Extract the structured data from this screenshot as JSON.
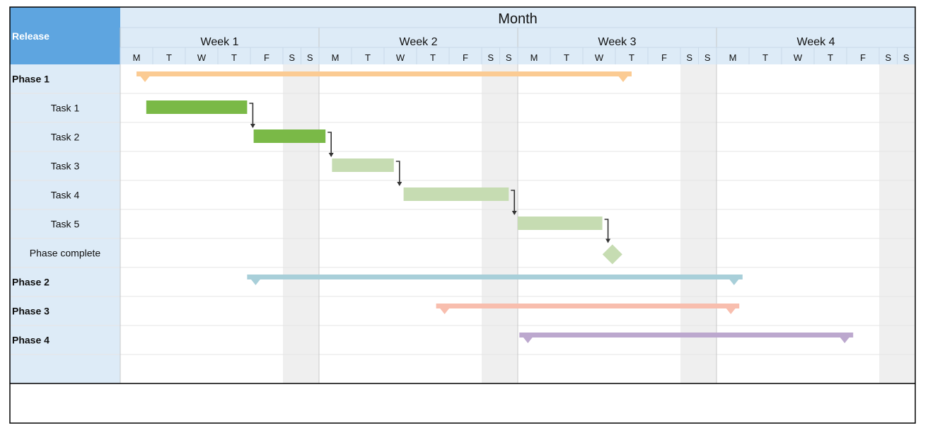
{
  "chart_data": {
    "type": "gantt",
    "title": "Month",
    "corner_label": "Release",
    "weeks": [
      "Week 1",
      "Week 2",
      "Week 3",
      "Week 4"
    ],
    "day_labels": [
      "M",
      "T",
      "W",
      "T",
      "F",
      "S",
      "S"
    ],
    "weekend_shaded": true,
    "rows": [
      {
        "label": "Phase 1",
        "kind": "phase",
        "start": 0.5,
        "end": 17.5,
        "color": "#FBCB93"
      },
      {
        "label": "Task 1",
        "kind": "task",
        "start": 0.8,
        "end": 3.9,
        "color": "#7AB947"
      },
      {
        "label": "Task 2",
        "kind": "task",
        "start": 4.1,
        "end": 7.2,
        "color": "#7AB947"
      },
      {
        "label": "Task 3",
        "kind": "task",
        "start": 7.4,
        "end": 9.3,
        "color": "#C6DCB2"
      },
      {
        "label": "Task 4",
        "kind": "task",
        "start": 9.6,
        "end": 13.5,
        "color": "#C6DCB2"
      },
      {
        "label": "Task 5",
        "kind": "task",
        "start": 14.0,
        "end": 16.6,
        "color": "#C6DCB2"
      },
      {
        "label": "Phase complete",
        "kind": "milestone",
        "at": 16.8,
        "color": "#C6DCB2"
      },
      {
        "label": "Phase 2",
        "kind": "phase",
        "start": 3.9,
        "end": 21.8,
        "color": "#A8CFD9"
      },
      {
        "label": "Phase 3",
        "kind": "phase",
        "start": 10.6,
        "end": 21.7,
        "color": "#F8BEAE"
      },
      {
        "label": "Phase 4",
        "kind": "phase",
        "start": 14.05,
        "end": 25.2,
        "color": "#BCA8CE"
      },
      {
        "label": "",
        "kind": "empty"
      }
    ],
    "dependencies": [
      [
        1,
        2
      ],
      [
        2,
        3
      ],
      [
        3,
        4
      ],
      [
        4,
        5
      ],
      [
        5,
        6
      ]
    ],
    "colors": {
      "header_left": "#5EA5E0",
      "header_bg": "#DDEBF7",
      "label_col_bg": "#DDEBF7",
      "weekend": "#EFEFEF",
      "grid": "#E6E6E6",
      "week_divider": "#C8C8C8",
      "border": "#000000"
    }
  }
}
